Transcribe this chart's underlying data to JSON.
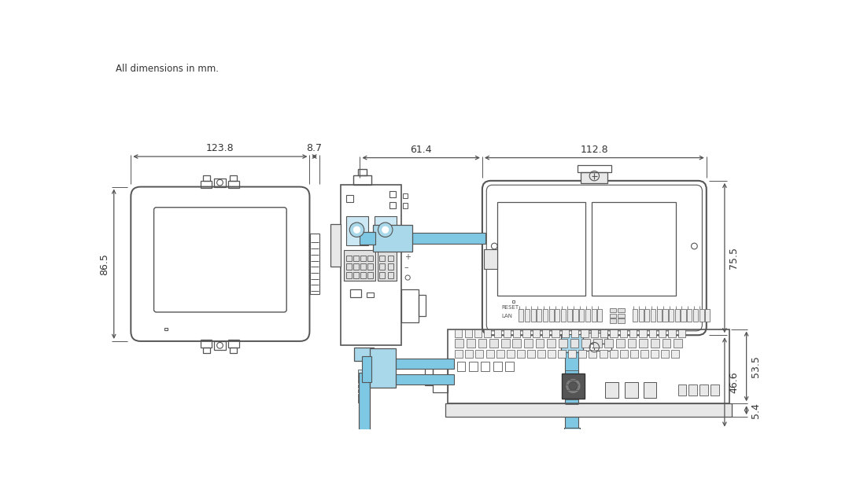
{
  "bg_color": "#ffffff",
  "line_color": "#555555",
  "blue_color": "#7ec8e3",
  "blue_mid": "#a8d8ea",
  "blue_light": "#cce8f4",
  "dim_color": "#555555",
  "text_color": "#333333",
  "header_text": "All dimensions in mm.",
  "gray_fill": "#e8e8e8",
  "gray_dark": "#cccccc",
  "gray_med": "#d4d4d4"
}
